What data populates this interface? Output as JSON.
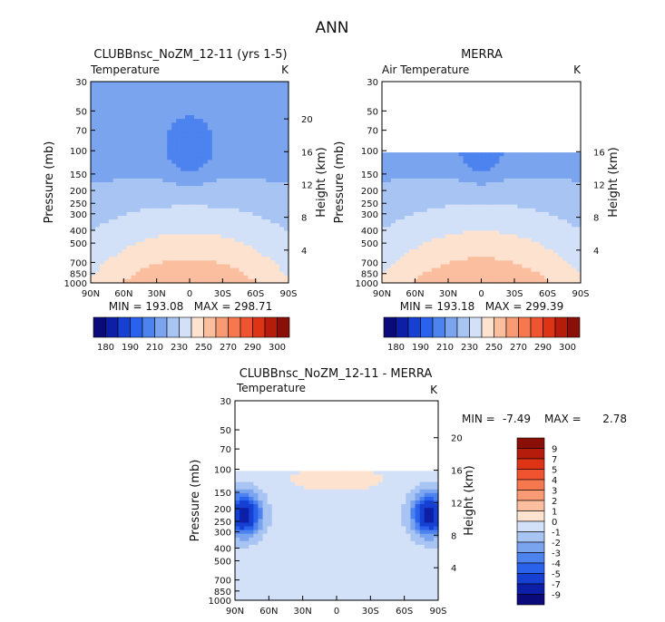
{
  "figure_title": "ANN",
  "colors": {
    "abs_levels": [
      "#0a0a7a",
      "#0d1fa6",
      "#1640d2",
      "#2a62ec",
      "#4d83ee",
      "#7ba4ef",
      "#a8c4f3",
      "#d2e1f8",
      "#fde2d0",
      "#fbbe9f",
      "#f89a74",
      "#f5784e",
      "#ef5330",
      "#dc3415",
      "#b51c0b",
      "#8a0f08"
    ],
    "diff_levels": [
      "#0a0a7a",
      "#0d1fa6",
      "#1640d2",
      "#2a62ec",
      "#4d83ee",
      "#7ba4ef",
      "#a8c4f3",
      "#d2e1f8",
      "#fde2d0",
      "#fbbe9f",
      "#f89a74",
      "#f5784e",
      "#ef5330",
      "#dc3415",
      "#b51c0b",
      "#8a0f08"
    ]
  },
  "chart_data": [
    {
      "type": "heatmap",
      "title": "CLUBBnsc_NoZM_12-11 (yrs 1-5)",
      "left_label": "Temperature",
      "right_label": "K",
      "ylabel": "Pressure (mb)",
      "ylabel_right": "Height (km)",
      "x_ticks": [
        "90N",
        "60N",
        "30N",
        "0",
        "30S",
        "60S",
        "90S"
      ],
      "y_ticks": [
        "30",
        "50",
        "70",
        "100",
        "150",
        "200",
        "250",
        "300",
        "400",
        "500",
        "700",
        "850",
        "1000"
      ],
      "height_ticks": [
        "20",
        "16",
        "12",
        "8",
        "4"
      ],
      "stats": "MIN = 193.08   MAX = 298.71",
      "colorbar_labels": [
        "180",
        "190",
        "210",
        "230",
        "250",
        "270",
        "290",
        "300"
      ],
      "x_range": [
        90,
        -90
      ],
      "y_range_mb": [
        1000,
        30
      ]
    },
    {
      "type": "heatmap",
      "title": "MERRA",
      "left_label": "Air Temperature",
      "right_label": "K",
      "ylabel": "Pressure (mb)",
      "ylabel_right": "Height (km)",
      "x_ticks": [
        "90N",
        "60N",
        "30N",
        "0",
        "30S",
        "60S",
        "90S"
      ],
      "y_ticks": [
        "30",
        "50",
        "70",
        "100",
        "150",
        "200",
        "250",
        "300",
        "400",
        "500",
        "700",
        "850",
        "1000"
      ],
      "height_ticks": [
        "16",
        "12",
        "8",
        "4"
      ],
      "stats": "MIN = 193.18   MAX = 299.39",
      "colorbar_labels": [
        "180",
        "190",
        "210",
        "230",
        "250",
        "270",
        "290",
        "300"
      ],
      "x_range": [
        90,
        -90
      ],
      "y_range_mb": [
        1000,
        30
      ],
      "data_top_mb": 100
    },
    {
      "type": "heatmap",
      "title": "CLUBBnsc_NoZM_12-11 - MERRA",
      "left_label": "Temperature",
      "right_label": "K",
      "ylabel": "Pressure (mb)",
      "ylabel_right": "Height (km)",
      "x_ticks": [
        "90N",
        "60N",
        "30N",
        "0",
        "30S",
        "60S",
        "90S"
      ],
      "y_ticks": [
        "30",
        "50",
        "70",
        "100",
        "150",
        "200",
        "250",
        "300",
        "400",
        "500",
        "700",
        "850",
        "1000"
      ],
      "height_ticks": [
        "20",
        "16",
        "12",
        "8",
        "4"
      ],
      "stats_min_label": "MIN =",
      "stats_min": "-7.49",
      "stats_max_label": "MAX =",
      "stats_max": "2.78",
      "colorbar_labels": [
        "9",
        "7",
        "5",
        "4",
        "3",
        "2",
        "1",
        "0",
        "-1",
        "-2",
        "-3",
        "-4",
        "-5",
        "-7",
        "-9"
      ],
      "x_range": [
        90,
        -90
      ],
      "y_range_mb": [
        1000,
        30
      ],
      "data_top_mb": 100
    }
  ]
}
